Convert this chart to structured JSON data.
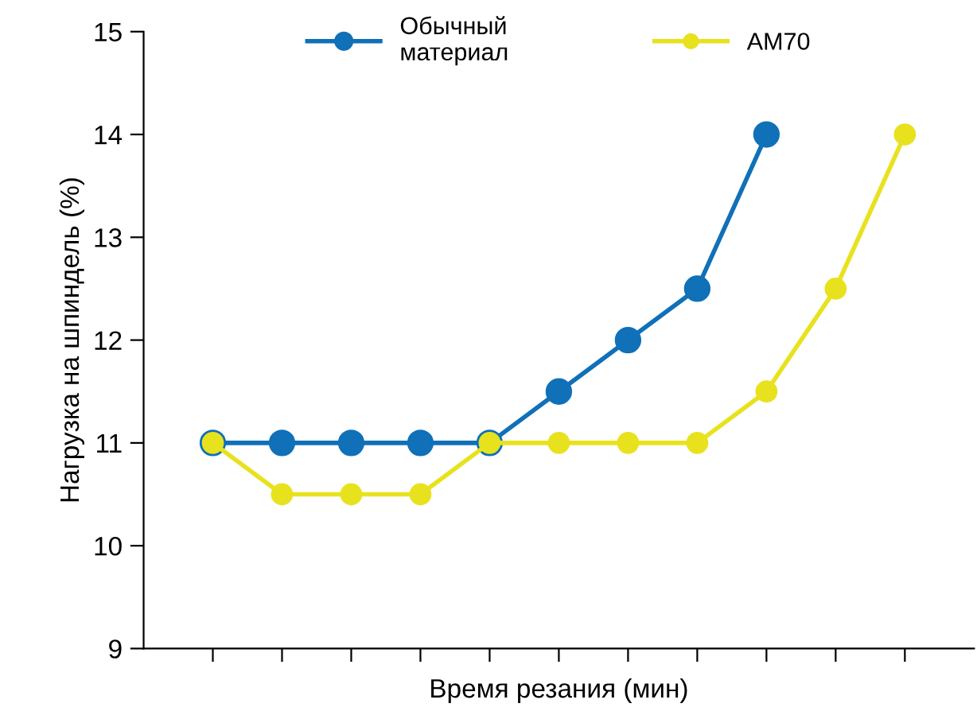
{
  "chart_data": {
    "type": "line",
    "xlabel": "Время резания (мин)",
    "ylabel": "Нагрузка на шпиндель (%)",
    "categories": [
      null,
      null,
      null,
      null,
      null,
      null,
      null,
      null,
      null,
      null,
      null
    ],
    "ylim": [
      9,
      15
    ],
    "yticks": [
      9,
      10,
      11,
      12,
      13,
      14,
      15
    ],
    "series": [
      {
        "name": "Обычный\nматериал",
        "color": "#1070b8",
        "values": [
          11,
          11,
          11,
          11,
          11,
          11.5,
          12,
          12.5,
          14,
          null,
          null
        ]
      },
      {
        "name": "AM70",
        "color": "#e8e21e",
        "values": [
          11,
          10.5,
          10.5,
          10.5,
          11,
          11,
          11,
          11,
          11.5,
          12.5,
          14
        ]
      }
    ],
    "marker": "circle",
    "line_style": "solid",
    "grid": false,
    "legend": "top"
  }
}
